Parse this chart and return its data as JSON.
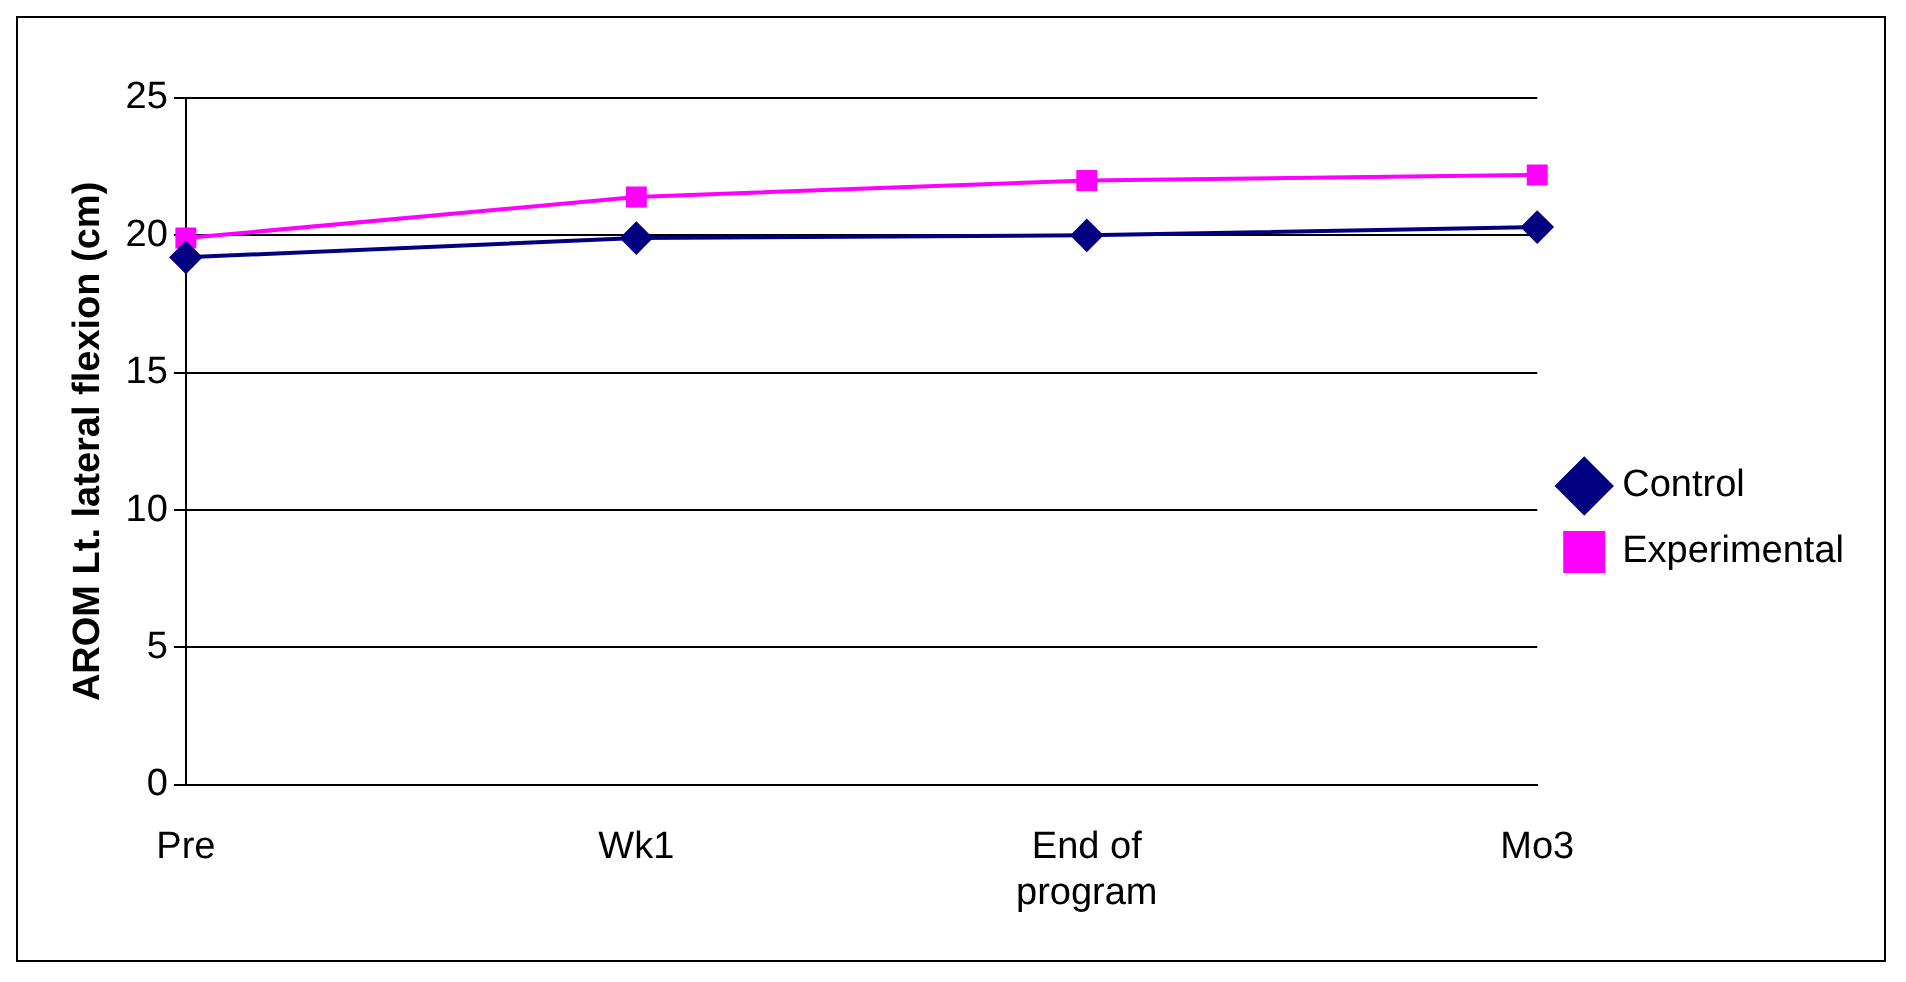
{
  "chart_data": {
    "type": "line",
    "ylabel": "AROM Lt. lateral flexion (cm)",
    "categories": [
      "Pre",
      "Wk1",
      "End of program",
      "Mo3"
    ],
    "series": [
      {
        "name": "Control",
        "color": "#000080",
        "marker": "diamond",
        "values": [
          19.2,
          19.9,
          20.0,
          20.3
        ]
      },
      {
        "name": "Experimental",
        "color": "#ff00ff",
        "marker": "square",
        "values": [
          19.9,
          21.4,
          22.0,
          22.2
        ]
      }
    ],
    "ylim": [
      0,
      25
    ],
    "yticks": [
      0,
      5,
      10,
      15,
      20,
      25
    ],
    "grid": "y",
    "legend": "right",
    "line_style": "solid"
  }
}
